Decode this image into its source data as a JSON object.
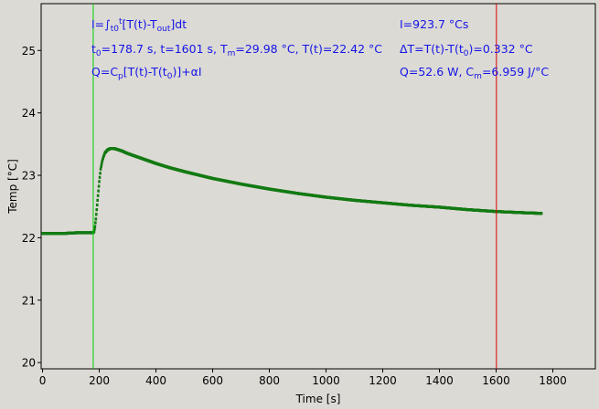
{
  "chart_data": {
    "type": "scatter",
    "xlabel": "Time [s]",
    "ylabel": "Temp [°C]",
    "xlim": [
      -5,
      1950
    ],
    "ylim": [
      19.9,
      25.75
    ],
    "xticks": [
      0,
      200,
      400,
      600,
      800,
      1000,
      1200,
      1400,
      1600,
      1800
    ],
    "yticks": [
      20,
      21,
      22,
      23,
      24,
      25
    ],
    "grid": false,
    "series": [
      {
        "color": "#137a13",
        "marker": "dot",
        "x": [
          0,
          40,
          80,
          120,
          178,
          182,
          185,
          188,
          191,
          194,
          197,
          200,
          205,
          210,
          215,
          220,
          230,
          240,
          250,
          260,
          280,
          300,
          350,
          400,
          450,
          500,
          600,
          700,
          800,
          900,
          1000,
          1100,
          1200,
          1300,
          1400,
          1500,
          1600,
          1700,
          1760
        ],
        "y": [
          22.07,
          22.07,
          22.07,
          22.08,
          22.08,
          22.1,
          22.18,
          22.3,
          22.45,
          22.6,
          22.75,
          22.9,
          23.1,
          23.22,
          23.3,
          23.36,
          23.41,
          23.43,
          23.43,
          23.42,
          23.39,
          23.35,
          23.27,
          23.19,
          23.12,
          23.06,
          22.95,
          22.86,
          22.78,
          22.71,
          22.65,
          22.6,
          22.56,
          22.52,
          22.49,
          22.45,
          22.42,
          22.4,
          22.39
        ]
      }
    ],
    "vlines": [
      {
        "x": 178.7,
        "color": "#00d000"
      },
      {
        "x": 1601,
        "color": "#e00000"
      }
    ],
    "annotations": {
      "integral_def": {
        "prefix": "I=∫",
        "lower": "t0",
        "upper": "t",
        "body": "[T(t)-T",
        "body_sub": "out",
        "end": "]dt"
      },
      "params": {
        "t0_label": "t",
        "t0_sub": "0",
        "t0_value": "=178.7 s,   t=1601 s,   T",
        "tm_sub": "m",
        "tm_value": "=29.98 °C,  T(t)=22.42 °C"
      },
      "q_def": {
        "prefix": "Q=C",
        "cp_sub": "p",
        "mid": "[T(t)-T(t",
        "t0_sub": "0",
        "end": ")]+αI"
      },
      "integral_value": "I=923.7 °Cs",
      "delta_t": {
        "prefix": "ΔT=T(t)-T(t",
        "sub": "0",
        "end": ")=0.332 °C"
      },
      "power": {
        "prefix": "Q=52.6 W,   C",
        "sub": "m",
        "end": "=6.959 J/°C"
      }
    }
  }
}
